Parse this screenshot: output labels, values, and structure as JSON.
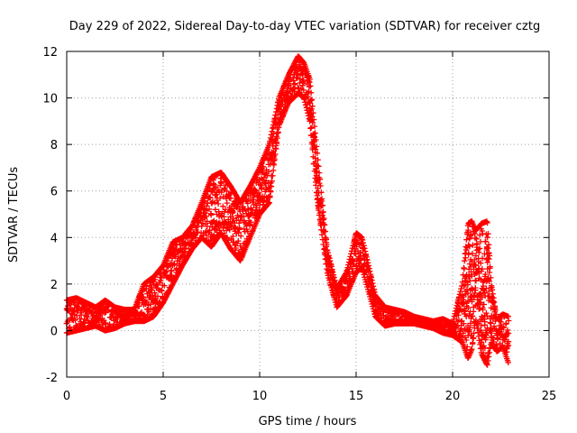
{
  "chart_data": {
    "type": "scatter",
    "title": "Day 229 of 2022, Sidereal Day-to-day VTEC variation (SDTVAR) for receiver cztg",
    "xlabel": "GPS time / hours",
    "ylabel": "SDTVAR / TECUs",
    "xlim": [
      0,
      25
    ],
    "ylim": [
      -2,
      12
    ],
    "xticks": [
      "0",
      "5",
      "10",
      "15",
      "20",
      "25"
    ],
    "yticks": [
      "-2",
      "0",
      "2",
      "4",
      "6",
      "8",
      "10",
      "12"
    ],
    "grid": true,
    "marker": "plus",
    "marker_color": "#ff0000",
    "series": [
      {
        "name": "SDTVAR",
        "color": "#ff0000",
        "envelope": {
          "x": [
            0.0,
            0.5,
            1.0,
            1.5,
            2.0,
            2.5,
            3.0,
            3.5,
            4.0,
            4.5,
            5.0,
            5.5,
            6.0,
            6.5,
            7.0,
            7.5,
            8.0,
            8.5,
            9.0,
            9.5,
            10.0,
            10.5,
            11.0,
            11.5,
            12.0,
            12.3,
            12.6,
            13.0,
            13.5,
            14.0,
            14.5,
            15.0,
            15.3,
            15.7,
            16.0,
            16.5,
            17.0,
            17.5,
            18.0,
            18.5,
            19.0,
            19.5,
            20.0,
            20.5,
            20.8,
            21.0,
            21.2,
            21.5,
            21.8,
            22.0,
            22.3,
            22.6,
            22.9
          ],
          "low": [
            -0.1,
            0.0,
            0.1,
            0.2,
            0.0,
            0.1,
            0.3,
            0.4,
            0.4,
            0.6,
            1.2,
            2.0,
            2.8,
            3.5,
            4.0,
            3.6,
            4.2,
            3.5,
            3.0,
            4.0,
            5.0,
            5.5,
            8.8,
            9.8,
            10.2,
            10.0,
            9.0,
            5.5,
            2.5,
            1.0,
            1.5,
            2.5,
            2.7,
            1.5,
            0.6,
            0.2,
            0.3,
            0.3,
            0.3,
            0.2,
            0.1,
            -0.1,
            -0.2,
            -0.5,
            -1.2,
            -0.8,
            0.5,
            -1.0,
            -1.5,
            -0.5,
            -0.9,
            -0.7,
            -1.4
          ],
          "high": [
            1.3,
            1.4,
            1.2,
            1.0,
            1.3,
            1.0,
            0.9,
            0.9,
            2.0,
            2.3,
            2.8,
            3.8,
            4.0,
            4.5,
            5.5,
            6.6,
            6.8,
            6.2,
            5.5,
            6.2,
            7.0,
            8.0,
            10.0,
            11.0,
            11.8,
            11.5,
            10.8,
            7.5,
            3.5,
            1.8,
            2.5,
            4.2,
            4.0,
            2.6,
            1.5,
            1.0,
            0.9,
            0.8,
            0.6,
            0.5,
            0.4,
            0.5,
            0.3,
            2.0,
            4.6,
            4.7,
            4.3,
            4.6,
            4.7,
            2.0,
            0.5,
            0.7,
            0.6
          ]
        }
      }
    ]
  }
}
